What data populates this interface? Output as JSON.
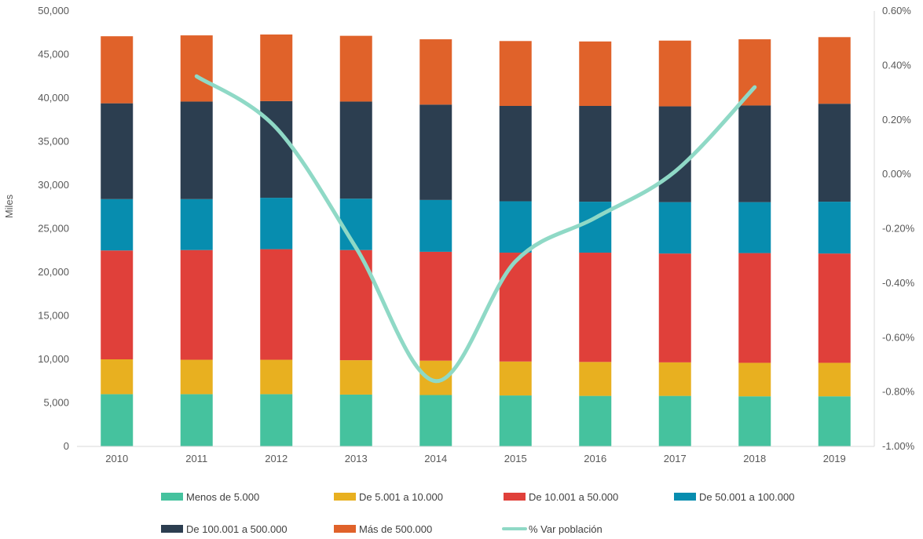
{
  "chart_data": {
    "type": "bar",
    "stacked": true,
    "categories": [
      "2010",
      "2011",
      "2012",
      "2013",
      "2014",
      "2015",
      "2016",
      "2017",
      "2018",
      "2019"
    ],
    "ylabel": "Miles",
    "ylim": [
      0,
      50000
    ],
    "yticks": [
      "0",
      "5,000",
      "10,000",
      "15,000",
      "20,000",
      "25,000",
      "30,000",
      "35,000",
      "40,000",
      "45,000",
      "50,000"
    ],
    "y2lim": [
      -1.0,
      0.6
    ],
    "y2ticks": [
      "-1.00%",
      "-0.80%",
      "-0.60%",
      "-0.40%",
      "-0.20%",
      "0.00%",
      "0.20%",
      "0.40%",
      "0.60%"
    ],
    "grid": false,
    "legend_position": "bottom",
    "series": [
      {
        "name": "Menos de 5.000",
        "color": "#45C29E",
        "values": [
          6000,
          6000,
          6000,
          5950,
          5900,
          5850,
          5800,
          5800,
          5750,
          5750
        ]
      },
      {
        "name": "De 5.001 a 10.000",
        "color": "#E8B020",
        "values": [
          4000,
          3950,
          3950,
          3950,
          3950,
          3900,
          3900,
          3850,
          3850,
          3850
        ]
      },
      {
        "name": "De 10.001 a 50.000",
        "color": "#E0403A",
        "values": [
          12500,
          12600,
          12700,
          12650,
          12500,
          12500,
          12550,
          12500,
          12600,
          12550
        ]
      },
      {
        "name": "De 50.001 a 100.000",
        "color": "#078DAF",
        "values": [
          5900,
          5850,
          5900,
          5900,
          5950,
          5900,
          5850,
          5900,
          5850,
          5950
        ]
      },
      {
        "name": "De 100.001 a 500.000",
        "color": "#2C3E50",
        "values": [
          11000,
          11200,
          11100,
          11150,
          10950,
          10950,
          11000,
          11000,
          11100,
          11250
        ]
      },
      {
        "name": "Más de 500.000",
        "color": "#E0622A",
        "values": [
          7700,
          7600,
          7650,
          7550,
          7500,
          7450,
          7400,
          7550,
          7600,
          7650
        ]
      }
    ],
    "line_series": {
      "name": "% Var población",
      "color": "#8FD9C6",
      "axis": "secondary",
      "values": [
        null,
        0.36,
        0.17,
        -0.27,
        -0.76,
        -0.32,
        -0.16,
        0.01,
        0.32,
        null
      ]
    }
  }
}
